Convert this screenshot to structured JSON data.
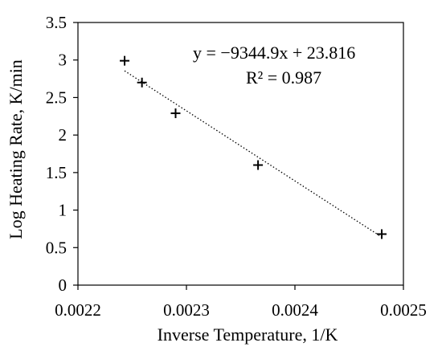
{
  "chart_data": {
    "type": "scatter",
    "xlabel": "Inverse Temperature, 1/K",
    "ylabel": "Log Heating Rate, K/min",
    "xlim": [
      0.0022,
      0.0025
    ],
    "ylim": [
      0,
      3.5
    ],
    "x_ticks": [
      0.0022,
      0.0023,
      0.0024,
      0.0025
    ],
    "x_tick_labels": [
      "0.0022",
      "0.0023",
      "0.0024",
      "0.0025"
    ],
    "y_ticks": [
      0,
      0.5,
      1,
      1.5,
      2,
      2.5,
      3,
      3.5
    ],
    "y_tick_labels": [
      "0",
      "0.5",
      "1",
      "1.5",
      "2",
      "2.5",
      "3",
      "3.5"
    ],
    "grid": false,
    "marker": "plus",
    "series": [
      {
        "x": [
          0.002243,
          0.002259,
          0.00229,
          0.002366,
          0.00248
        ],
        "y": [
          2.99,
          2.7,
          2.29,
          1.6,
          0.68
        ]
      }
    ],
    "trendline": {
      "style": "dotted",
      "slope": -9344.9,
      "intercept": 23.816,
      "x_range": [
        0.002243,
        0.00248
      ]
    },
    "annotations": {
      "equation": "y = −9344.9x + 23.816",
      "r_squared": "R² = 0.987"
    }
  }
}
